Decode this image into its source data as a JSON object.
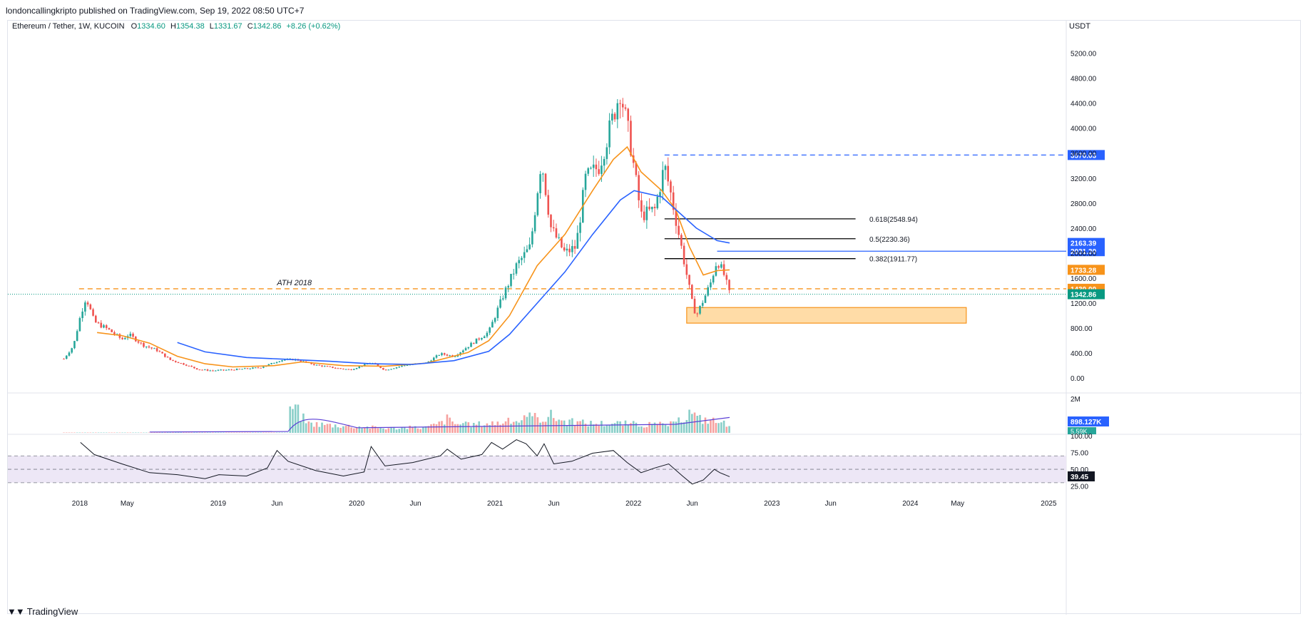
{
  "header": {
    "published_text": "londoncallingkripto published on TradingView.com, Sep 19, 2022 08:50 UTC+7"
  },
  "symbol_line": {
    "pair": "Ethereum / Tether, 1W, KUCOIN",
    "o_label": "O",
    "o_value": "1334.60",
    "h_label": "H",
    "h_value": "1354.38",
    "l_label": "L",
    "l_value": "1331.67",
    "c_label": "C",
    "c_value": "1342.86",
    "change": "+8.26 (+0.62%)"
  },
  "footer": {
    "brand": "TradingView"
  },
  "colors": {
    "up": "#26a69a",
    "down": "#ef5350",
    "ema_fast": "#f7931a",
    "ema_slow": "#2962ff",
    "rsi": "#131722",
    "rsi_band": "#ede7f6",
    "fib": "#000000",
    "zone_fill": "#ffd08a",
    "zone_stroke": "#f7931a",
    "vol_ma": "#5b3fd6",
    "current_price": "#089981"
  },
  "chart_data": {
    "type": "candlestick",
    "price_unit": "USDT",
    "y_ticks": [
      "5200.00",
      "4800.00",
      "4400.00",
      "4000.00",
      "3600.00",
      "3200.00",
      "2800.00",
      "2400.00",
      "2000.00",
      "1600.00",
      "1200.00",
      "800.00",
      "400.00",
      "0.00"
    ],
    "x_ticks": [
      "2018",
      "May",
      "2019",
      "Jun",
      "2020",
      "Jun",
      "2021",
      "Jun",
      "2022",
      "Jun",
      "2023",
      "Jun",
      "2024",
      "May",
      "2025"
    ],
    "ylim": [
      -100,
      5400
    ],
    "price_path": [
      [
        2017.88,
        310
      ],
      [
        2017.95,
        520
      ],
      [
        2018.0,
        1000
      ],
      [
        2018.04,
        1300
      ],
      [
        2018.1,
        900
      ],
      [
        2018.2,
        780
      ],
      [
        2018.3,
        620
      ],
      [
        2018.35,
        700
      ],
      [
        2018.45,
        530
      ],
      [
        2018.55,
        450
      ],
      [
        2018.65,
        290
      ],
      [
        2018.75,
        220
      ],
      [
        2018.85,
        140
      ],
      [
        2018.95,
        120
      ],
      [
        2019.1,
        135
      ],
      [
        2019.3,
        170
      ],
      [
        2019.45,
        290
      ],
      [
        2019.55,
        300
      ],
      [
        2019.7,
        210
      ],
      [
        2019.85,
        160
      ],
      [
        2019.95,
        135
      ],
      [
        2020.1,
        250
      ],
      [
        2020.2,
        130
      ],
      [
        2020.35,
        210
      ],
      [
        2020.5,
        245
      ],
      [
        2020.6,
        390
      ],
      [
        2020.7,
        350
      ],
      [
        2020.85,
        590
      ],
      [
        2020.95,
        740
      ],
      [
        2021.05,
        1300
      ],
      [
        2021.15,
        1800
      ],
      [
        2021.25,
        2100
      ],
      [
        2021.33,
        3500
      ],
      [
        2021.4,
        2400
      ],
      [
        2021.5,
        2000
      ],
      [
        2021.58,
        2100
      ],
      [
        2021.65,
        3200
      ],
      [
        2021.75,
        3400
      ],
      [
        2021.85,
        4200
      ],
      [
        2021.9,
        4600
      ],
      [
        2021.97,
        3800
      ],
      [
        2022.05,
        2600
      ],
      [
        2022.15,
        2700
      ],
      [
        2022.22,
        3400
      ],
      [
        2022.27,
        2900
      ],
      [
        2022.35,
        2000
      ],
      [
        2022.42,
        1200
      ],
      [
        2022.45,
        1000
      ],
      [
        2022.55,
        1500
      ],
      [
        2022.6,
        1900
      ],
      [
        2022.65,
        1650
      ],
      [
        2022.69,
        1340
      ]
    ],
    "ema_fast_path": [
      [
        2018.12,
        730
      ],
      [
        2018.3,
        680
      ],
      [
        2018.5,
        560
      ],
      [
        2018.7,
        350
      ],
      [
        2018.9,
        230
      ],
      [
        2019.1,
        180
      ],
      [
        2019.4,
        200
      ],
      [
        2019.6,
        260
      ],
      [
        2019.9,
        200
      ],
      [
        2020.2,
        190
      ],
      [
        2020.5,
        240
      ],
      [
        2020.8,
        410
      ],
      [
        2020.95,
        600
      ],
      [
        2021.1,
        1000
      ],
      [
        2021.3,
        1800
      ],
      [
        2021.5,
        2300
      ],
      [
        2021.7,
        3000
      ],
      [
        2021.85,
        3500
      ],
      [
        2021.95,
        3700
      ],
      [
        2022.05,
        3300
      ],
      [
        2022.2,
        3000
      ],
      [
        2022.3,
        2700
      ],
      [
        2022.4,
        2100
      ],
      [
        2022.5,
        1650
      ],
      [
        2022.6,
        1720
      ],
      [
        2022.69,
        1733
      ]
    ],
    "ema_slow_path": [
      [
        2018.7,
        570
      ],
      [
        2018.9,
        420
      ],
      [
        2019.2,
        330
      ],
      [
        2019.5,
        300
      ],
      [
        2019.8,
        270
      ],
      [
        2020.1,
        230
      ],
      [
        2020.4,
        220
      ],
      [
        2020.7,
        280
      ],
      [
        2020.95,
        430
      ],
      [
        2021.1,
        700
      ],
      [
        2021.3,
        1200
      ],
      [
        2021.5,
        1700
      ],
      [
        2021.7,
        2300
      ],
      [
        2021.9,
        2850
      ],
      [
        2022.0,
        3000
      ],
      [
        2022.2,
        2900
      ],
      [
        2022.3,
        2700
      ],
      [
        2022.45,
        2400
      ],
      [
        2022.6,
        2200
      ],
      [
        2022.69,
        2163
      ]
    ],
    "levels": [
      {
        "name": "ath-2018",
        "value": 1430.0,
        "label": "ATH 2018",
        "badge": "1430.00",
        "color": "#f7931a",
        "dashed": true
      },
      {
        "name": "resistance-top",
        "value": 3570.03,
        "badge": "3570.03",
        "color": "#2962ff",
        "dashed": true
      },
      {
        "name": "resistance-mid",
        "value": 2031.3,
        "badge": "2031.30",
        "color": "#2962ff",
        "dashed": false
      }
    ],
    "badges": [
      {
        "name": "ema-slow-badge",
        "value": 2163.39,
        "text": "2163.39",
        "color": "#2962ff"
      },
      {
        "name": "ema-fast-badge",
        "value": 1733.28,
        "text": "1733.28",
        "color": "#f7931a"
      },
      {
        "name": "last-price-badge",
        "value": 1342.86,
        "text": "1342.86",
        "color": "#089981"
      }
    ],
    "fib_levels": [
      {
        "ratio": "0.618",
        "value": 2548.94,
        "label": "0.618(2548.94)"
      },
      {
        "ratio": "0.5",
        "value": 2230.36,
        "label": "0.5(2230.36)"
      },
      {
        "ratio": "0.382",
        "value": 1911.77,
        "label": "0.382(1911.77)"
      }
    ],
    "demand_zone": {
      "from_x": 2022.38,
      "to_x": 2024.4,
      "low": 880,
      "high": 1130
    },
    "volume": {
      "top_tick": "2M",
      "badge_main": "898.127K",
      "badge_sub": "5.59K",
      "values": [
        [
          2018.5,
          0.05
        ],
        [
          2019.5,
          0.08
        ],
        [
          2019.52,
          1.75
        ],
        [
          2019.55,
          1.6
        ],
        [
          2019.6,
          1.0
        ],
        [
          2019.65,
          0.6
        ],
        [
          2019.8,
          0.5
        ],
        [
          2020.0,
          0.4
        ],
        [
          2020.2,
          0.3
        ],
        [
          2020.5,
          0.35
        ],
        [
          2020.6,
          0.6
        ],
        [
          2020.65,
          0.9
        ],
        [
          2020.7,
          0.6
        ],
        [
          2020.8,
          0.5
        ],
        [
          2020.95,
          0.6
        ],
        [
          2021.1,
          0.7
        ],
        [
          2021.3,
          1.0
        ],
        [
          2021.35,
          0.9
        ],
        [
          2021.4,
          1.1
        ],
        [
          2021.5,
          0.7
        ],
        [
          2021.7,
          0.6
        ],
        [
          2021.9,
          0.6
        ],
        [
          2022.1,
          0.5
        ],
        [
          2022.3,
          0.55
        ],
        [
          2022.42,
          1.4
        ],
        [
          2022.45,
          0.9
        ],
        [
          2022.55,
          0.8
        ],
        [
          2022.65,
          0.6
        ]
      ],
      "ma": 0.9
    },
    "rsi": {
      "ticks": [
        "100.00",
        "75.00",
        "50.00",
        "25.00"
      ],
      "band": [
        30,
        70
      ],
      "last": "39.45",
      "path": [
        [
          2018.0,
          90
        ],
        [
          2018.1,
          72
        ],
        [
          2018.3,
          58
        ],
        [
          2018.5,
          45
        ],
        [
          2018.7,
          42
        ],
        [
          2018.9,
          36
        ],
        [
          2019.0,
          42
        ],
        [
          2019.2,
          40
        ],
        [
          2019.35,
          52
        ],
        [
          2019.42,
          78
        ],
        [
          2019.5,
          62
        ],
        [
          2019.7,
          48
        ],
        [
          2019.9,
          40
        ],
        [
          2020.05,
          46
        ],
        [
          2020.1,
          84
        ],
        [
          2020.2,
          55
        ],
        [
          2020.4,
          60
        ],
        [
          2020.6,
          70
        ],
        [
          2020.65,
          80
        ],
        [
          2020.75,
          65
        ],
        [
          2020.9,
          72
        ],
        [
          2020.97,
          90
        ],
        [
          2021.05,
          80
        ],
        [
          2021.15,
          94
        ],
        [
          2021.22,
          88
        ],
        [
          2021.3,
          70
        ],
        [
          2021.35,
          88
        ],
        [
          2021.42,
          58
        ],
        [
          2021.55,
          62
        ],
        [
          2021.7,
          74
        ],
        [
          2021.85,
          78
        ],
        [
          2021.95,
          60
        ],
        [
          2022.05,
          45
        ],
        [
          2022.15,
          52
        ],
        [
          2022.25,
          58
        ],
        [
          2022.35,
          40
        ],
        [
          2022.42,
          28
        ],
        [
          2022.5,
          34
        ],
        [
          2022.58,
          50
        ],
        [
          2022.62,
          45
        ],
        [
          2022.69,
          39
        ]
      ]
    },
    "xlabel": "",
    "ylabel": ""
  }
}
